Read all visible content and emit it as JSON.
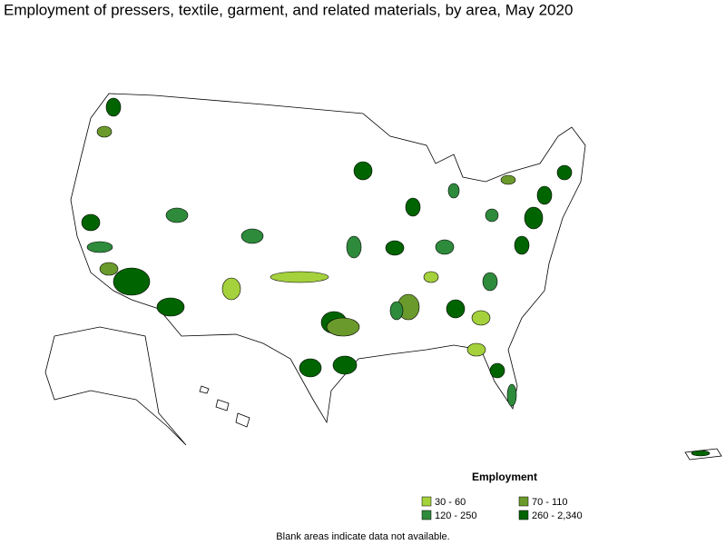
{
  "header": {
    "title": "Employment of pressers, textile, garment, and related materials, by area, May 2020"
  },
  "legend": {
    "title": "Employment",
    "items": [
      {
        "label": "30 - 60",
        "color": "#a4d13c"
      },
      {
        "label": "70 - 110",
        "color": "#6b9a2c"
      },
      {
        "label": "120 - 250",
        "color": "#2e8b3c"
      },
      {
        "label": "260 - 2,340",
        "color": "#006400"
      }
    ]
  },
  "footnote": "Blank areas indicate data not available."
}
